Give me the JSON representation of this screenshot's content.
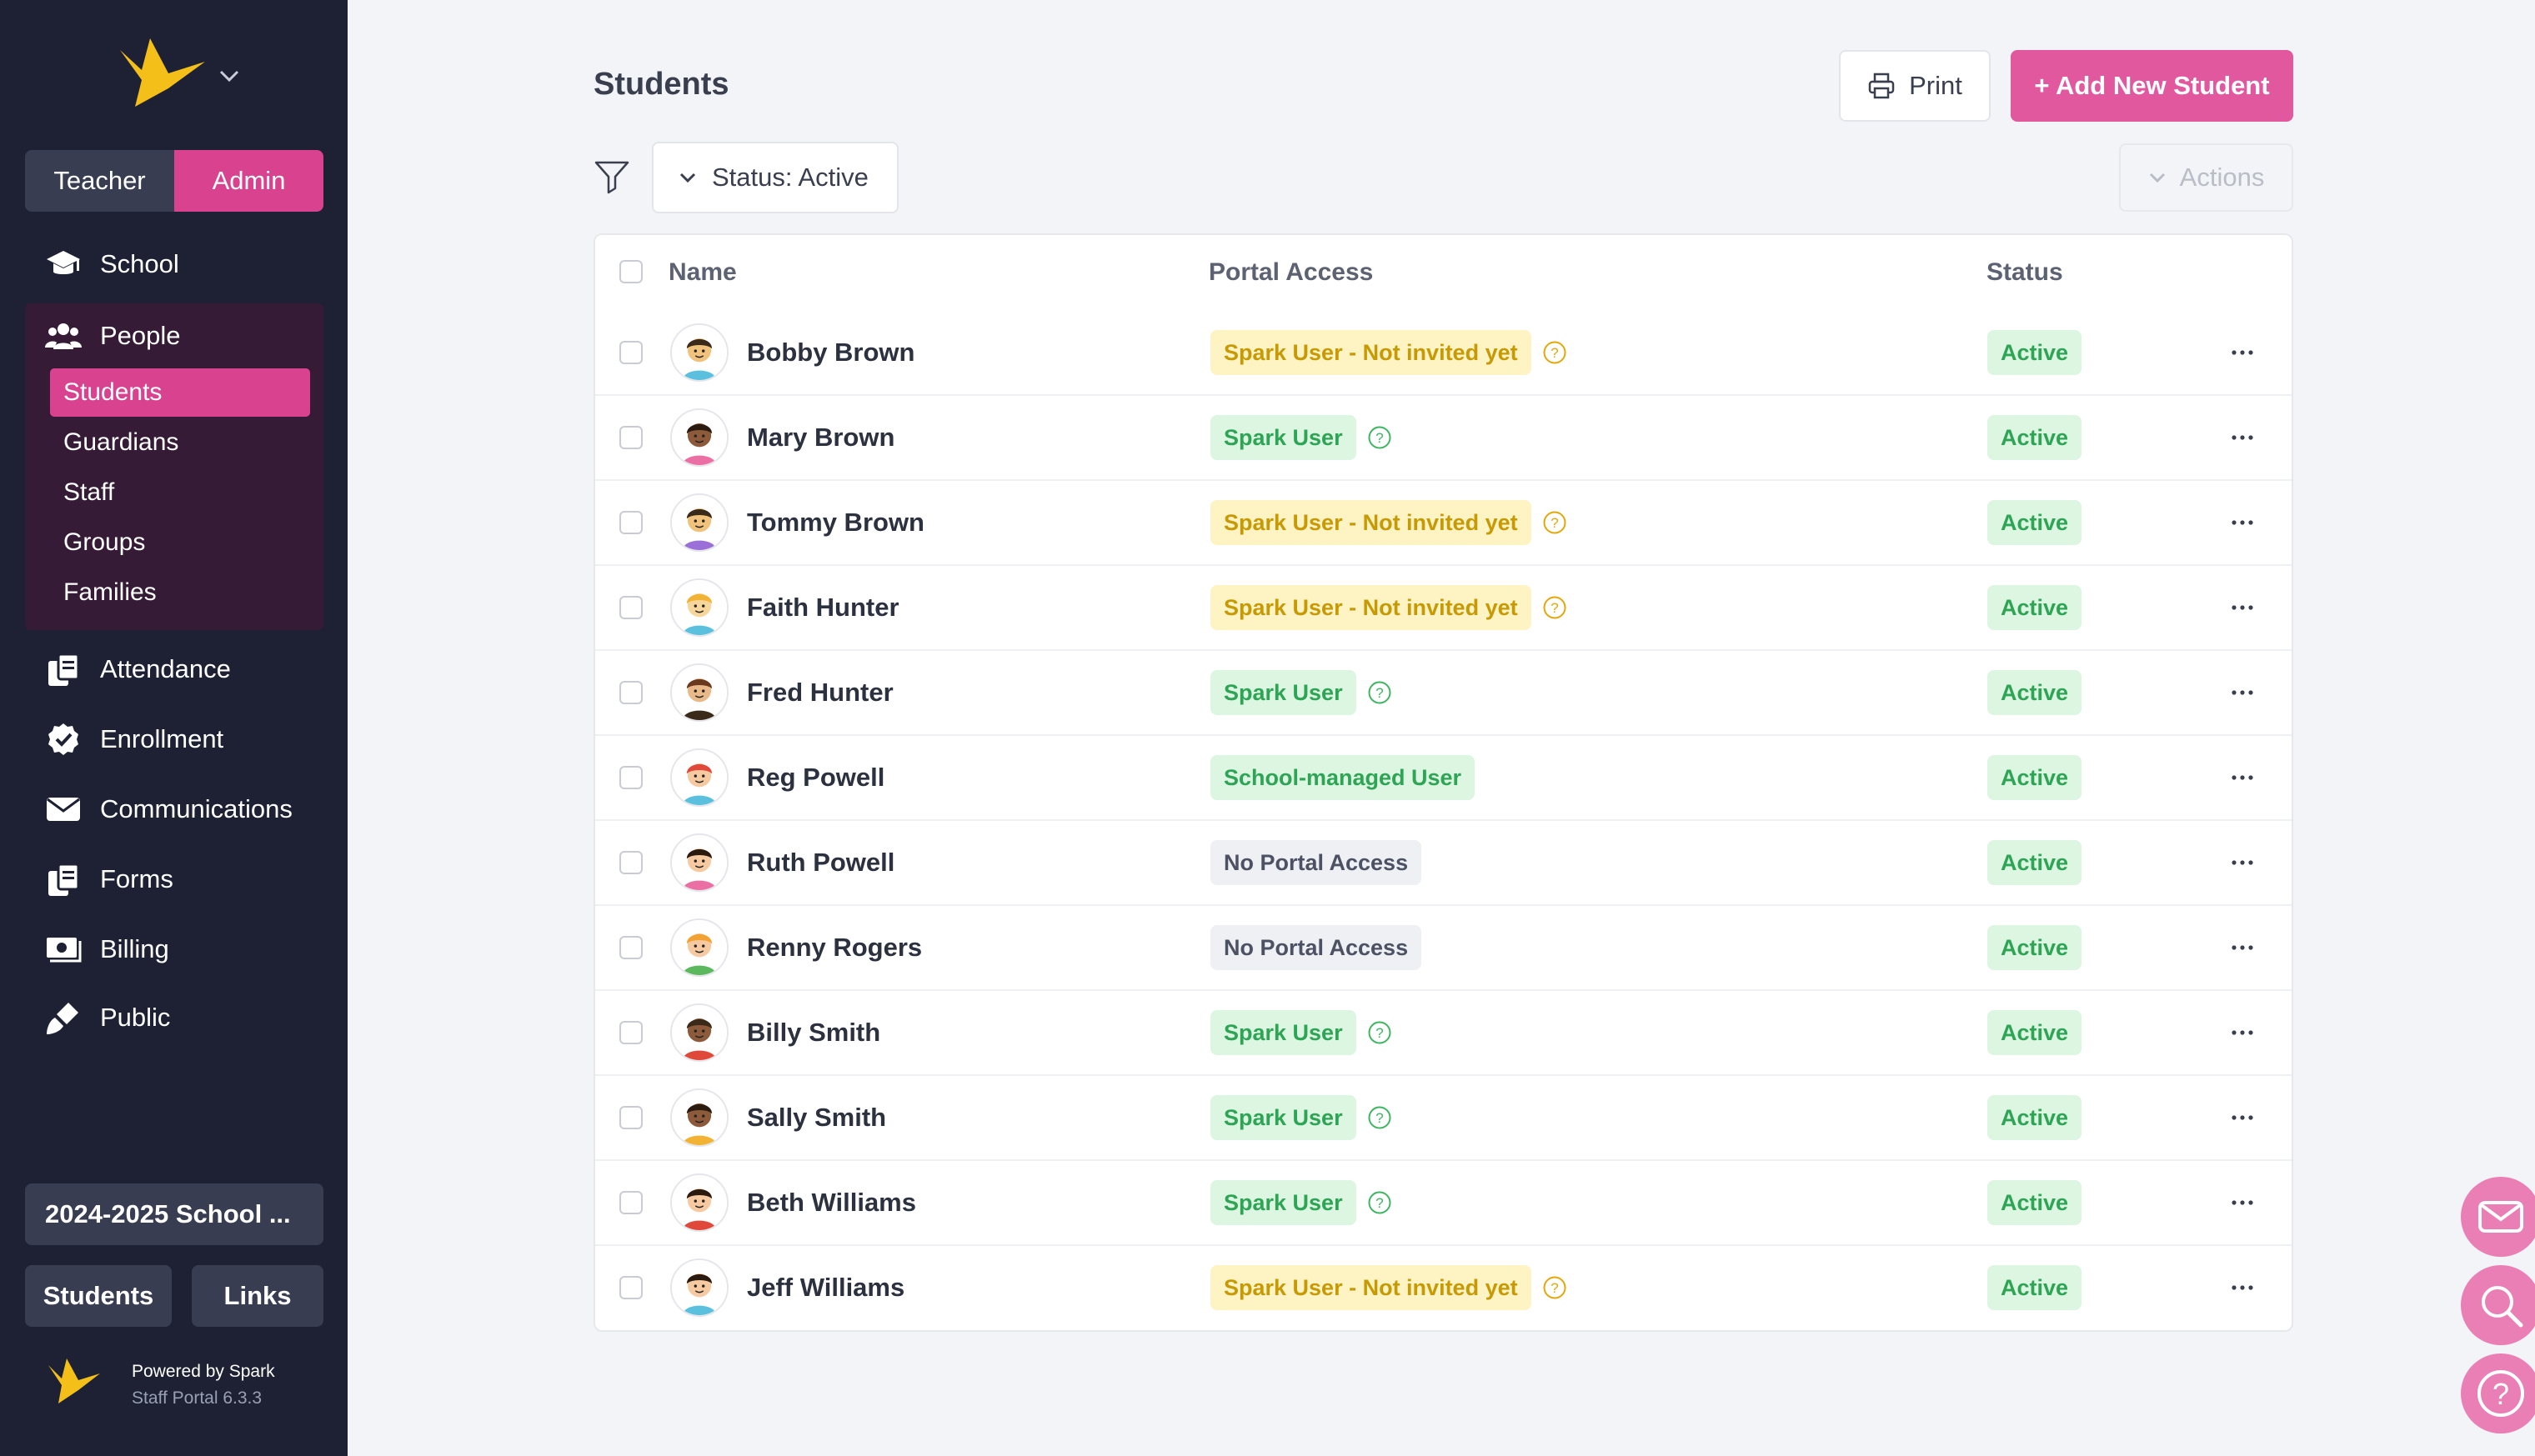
{
  "sidebar": {
    "roles": {
      "teacher": "Teacher",
      "admin": "Admin"
    },
    "nav": {
      "school": "School",
      "people": "People",
      "attendance": "Attendance",
      "enrollment": "Enrollment",
      "communications": "Communications",
      "forms": "Forms",
      "billing": "Billing",
      "public": "Public"
    },
    "people_sub": {
      "students": "Students",
      "guardians": "Guardians",
      "staff": "Staff",
      "groups": "Groups",
      "families": "Families"
    },
    "school_year": "2024-2025 School ...",
    "footer_buttons": {
      "students": "Students",
      "links": "Links"
    },
    "powered_by": "Powered by Spark",
    "version": "Staff Portal 6.3.3"
  },
  "header": {
    "title": "Students",
    "print_label": "Print",
    "add_label": "+ Add New Student",
    "status_filter": "Status: Active",
    "actions_label": "Actions"
  },
  "table": {
    "columns": {
      "name": "Name",
      "portal": "Portal Access",
      "status": "Status"
    },
    "rows": [
      {
        "name": "Bobby Brown",
        "portal": "Spark User - Not invited yet",
        "portal_type": "yellow",
        "status": "Active"
      },
      {
        "name": "Mary Brown",
        "portal": "Spark User",
        "portal_type": "green",
        "status": "Active"
      },
      {
        "name": "Tommy Brown",
        "portal": "Spark User - Not invited yet",
        "portal_type": "yellow",
        "status": "Active"
      },
      {
        "name": "Faith Hunter",
        "portal": "Spark User - Not invited yet",
        "portal_type": "yellow",
        "status": "Active"
      },
      {
        "name": "Fred Hunter",
        "portal": "Spark User",
        "portal_type": "green",
        "status": "Active"
      },
      {
        "name": "Reg Powell",
        "portal": "School-managed User",
        "portal_type": "green",
        "status": "Active"
      },
      {
        "name": "Ruth Powell",
        "portal": "No Portal Access",
        "portal_type": "gray",
        "status": "Active"
      },
      {
        "name": "Renny Rogers",
        "portal": "No Portal Access",
        "portal_type": "gray",
        "status": "Active"
      },
      {
        "name": "Billy Smith",
        "portal": "Spark User",
        "portal_type": "green",
        "status": "Active"
      },
      {
        "name": "Sally Smith",
        "portal": "Spark User",
        "portal_type": "green",
        "status": "Active"
      },
      {
        "name": "Beth Williams",
        "portal": "Spark User",
        "portal_type": "green",
        "status": "Active"
      },
      {
        "name": "Jeff Williams",
        "portal": "Spark User - Not invited yet",
        "portal_type": "yellow",
        "status": "Active"
      }
    ]
  },
  "colors": {
    "accent": "#d9428f",
    "sidebar": "#1d2133",
    "warning_text": "#c79a05",
    "success_text": "#2ea455"
  },
  "icons": {
    "fabs": [
      "mail-icon",
      "search-icon",
      "help-icon"
    ]
  }
}
